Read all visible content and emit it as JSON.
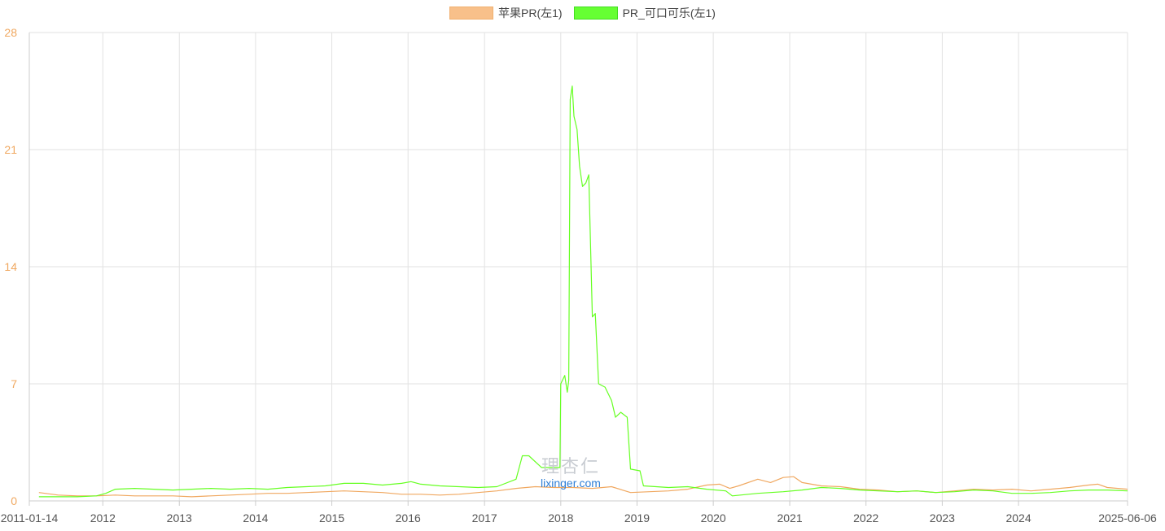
{
  "legend": [
    {
      "label": "苹果PR(左1)",
      "color": "#f8c08a",
      "border": "#f0b070"
    },
    {
      "label": "PR_可口可乐(左1)",
      "color": "#66ff33",
      "border": "#44dd22"
    }
  ],
  "watermark": {
    "cn": "理杏仁",
    "en": "lixinger.com"
  },
  "chart_data": {
    "type": "line",
    "x_start_label": "2011-01-14",
    "x_end_label": "2025-06-06",
    "xlim": [
      "2011-01-14",
      "2025-06-06"
    ],
    "x_ticks": [
      "2012",
      "2013",
      "2014",
      "2015",
      "2016",
      "2017",
      "2018",
      "2019",
      "2020",
      "2021",
      "2022",
      "2023",
      "2024"
    ],
    "ylim": [
      0,
      28
    ],
    "y_ticks": [
      "0",
      "7",
      "14",
      "21",
      "28"
    ],
    "grid": true,
    "legend_position": "top-center",
    "series": [
      {
        "name": "苹果PR(左1)",
        "color": "#f0a860",
        "points": [
          [
            "2011-03-01",
            0.5
          ],
          [
            "2011-06-01",
            0.35
          ],
          [
            "2011-09-01",
            0.3
          ],
          [
            "2011-12-01",
            0.3
          ],
          [
            "2012-03-01",
            0.35
          ],
          [
            "2012-06-01",
            0.3
          ],
          [
            "2012-09-01",
            0.3
          ],
          [
            "2012-12-01",
            0.3
          ],
          [
            "2013-03-01",
            0.25
          ],
          [
            "2013-06-01",
            0.3
          ],
          [
            "2013-09-01",
            0.35
          ],
          [
            "2013-12-01",
            0.4
          ],
          [
            "2014-03-01",
            0.45
          ],
          [
            "2014-06-01",
            0.45
          ],
          [
            "2014-09-01",
            0.5
          ],
          [
            "2014-12-01",
            0.55
          ],
          [
            "2015-03-01",
            0.6
          ],
          [
            "2015-06-01",
            0.55
          ],
          [
            "2015-09-01",
            0.5
          ],
          [
            "2015-12-01",
            0.4
          ],
          [
            "2016-03-01",
            0.4
          ],
          [
            "2016-06-01",
            0.35
          ],
          [
            "2016-09-01",
            0.4
          ],
          [
            "2016-12-01",
            0.5
          ],
          [
            "2017-03-01",
            0.6
          ],
          [
            "2017-06-01",
            0.75
          ],
          [
            "2017-09-01",
            0.85
          ],
          [
            "2017-12-01",
            0.8
          ],
          [
            "2018-03-01",
            0.8
          ],
          [
            "2018-06-01",
            0.75
          ],
          [
            "2018-09-01",
            0.85
          ],
          [
            "2018-12-01",
            0.5
          ],
          [
            "2019-03-01",
            0.55
          ],
          [
            "2019-06-01",
            0.6
          ],
          [
            "2019-09-01",
            0.7
          ],
          [
            "2019-12-01",
            0.95
          ],
          [
            "2020-02-01",
            1.0
          ],
          [
            "2020-03-20",
            0.75
          ],
          [
            "2020-05-01",
            0.9
          ],
          [
            "2020-08-01",
            1.3
          ],
          [
            "2020-10-01",
            1.1
          ],
          [
            "2020-12-01",
            1.4
          ],
          [
            "2021-01-20",
            1.45
          ],
          [
            "2021-03-01",
            1.1
          ],
          [
            "2021-06-01",
            0.9
          ],
          [
            "2021-09-01",
            0.85
          ],
          [
            "2021-12-01",
            0.7
          ],
          [
            "2022-03-01",
            0.65
          ],
          [
            "2022-06-01",
            0.55
          ],
          [
            "2022-09-01",
            0.6
          ],
          [
            "2022-12-01",
            0.5
          ],
          [
            "2023-03-01",
            0.6
          ],
          [
            "2023-06-01",
            0.7
          ],
          [
            "2023-09-01",
            0.65
          ],
          [
            "2023-12-01",
            0.7
          ],
          [
            "2024-03-01",
            0.6
          ],
          [
            "2024-06-01",
            0.7
          ],
          [
            "2024-09-01",
            0.8
          ],
          [
            "2024-12-01",
            0.95
          ],
          [
            "2025-01-15",
            1.0
          ],
          [
            "2025-03-01",
            0.8
          ],
          [
            "2025-06-06",
            0.7
          ]
        ]
      },
      {
        "name": "PR_可口可乐(左1)",
        "color": "#66ff22",
        "points": [
          [
            "2011-03-01",
            0.25
          ],
          [
            "2011-06-01",
            0.25
          ],
          [
            "2011-09-01",
            0.25
          ],
          [
            "2011-12-01",
            0.3
          ],
          [
            "2012-01-15",
            0.45
          ],
          [
            "2012-03-01",
            0.7
          ],
          [
            "2012-06-01",
            0.75
          ],
          [
            "2012-09-01",
            0.7
          ],
          [
            "2012-12-01",
            0.65
          ],
          [
            "2013-03-01",
            0.7
          ],
          [
            "2013-06-01",
            0.75
          ],
          [
            "2013-09-01",
            0.7
          ],
          [
            "2013-12-01",
            0.75
          ],
          [
            "2014-03-01",
            0.7
          ],
          [
            "2014-06-01",
            0.8
          ],
          [
            "2014-09-01",
            0.85
          ],
          [
            "2014-12-01",
            0.9
          ],
          [
            "2015-03-01",
            1.05
          ],
          [
            "2015-06-01",
            1.05
          ],
          [
            "2015-09-01",
            0.95
          ],
          [
            "2015-12-01",
            1.05
          ],
          [
            "2016-01-15",
            1.15
          ],
          [
            "2016-03-01",
            1.0
          ],
          [
            "2016-06-01",
            0.9
          ],
          [
            "2016-09-01",
            0.85
          ],
          [
            "2016-12-01",
            0.8
          ],
          [
            "2017-03-01",
            0.85
          ],
          [
            "2017-06-01",
            1.3
          ],
          [
            "2017-07-01",
            2.7
          ],
          [
            "2017-08-01",
            2.7
          ],
          [
            "2017-10-01",
            2.0
          ],
          [
            "2017-12-28",
            2.0
          ],
          [
            "2018-01-01",
            7.0
          ],
          [
            "2018-01-20",
            7.5
          ],
          [
            "2018-02-01",
            6.5
          ],
          [
            "2018-02-08",
            7.2
          ],
          [
            "2018-02-15",
            24.0
          ],
          [
            "2018-02-25",
            24.8
          ],
          [
            "2018-03-05",
            23.0
          ],
          [
            "2018-03-20",
            22.2
          ],
          [
            "2018-04-01",
            20.0
          ],
          [
            "2018-04-15",
            18.8
          ],
          [
            "2018-05-01",
            19.0
          ],
          [
            "2018-05-15",
            19.5
          ],
          [
            "2018-06-01",
            11.0
          ],
          [
            "2018-06-15",
            11.2
          ],
          [
            "2018-07-01",
            7.0
          ],
          [
            "2018-08-01",
            6.8
          ],
          [
            "2018-09-01",
            6.0
          ],
          [
            "2018-09-20",
            5.0
          ],
          [
            "2018-10-15",
            5.3
          ],
          [
            "2018-11-15",
            5.0
          ],
          [
            "2018-12-01",
            1.9
          ],
          [
            "2019-01-15",
            1.8
          ],
          [
            "2019-02-01",
            0.9
          ],
          [
            "2019-06-01",
            0.8
          ],
          [
            "2019-09-01",
            0.85
          ],
          [
            "2019-12-01",
            0.7
          ],
          [
            "2020-03-01",
            0.6
          ],
          [
            "2020-04-01",
            0.3
          ],
          [
            "2020-08-01",
            0.45
          ],
          [
            "2020-12-01",
            0.55
          ],
          [
            "2021-03-01",
            0.65
          ],
          [
            "2021-06-01",
            0.8
          ],
          [
            "2021-09-01",
            0.75
          ],
          [
            "2021-12-01",
            0.65
          ],
          [
            "2022-03-01",
            0.6
          ],
          [
            "2022-06-01",
            0.55
          ],
          [
            "2022-09-01",
            0.6
          ],
          [
            "2022-12-01",
            0.5
          ],
          [
            "2023-03-01",
            0.55
          ],
          [
            "2023-06-01",
            0.65
          ],
          [
            "2023-09-01",
            0.6
          ],
          [
            "2023-12-01",
            0.45
          ],
          [
            "2024-03-01",
            0.45
          ],
          [
            "2024-06-01",
            0.5
          ],
          [
            "2024-09-01",
            0.6
          ],
          [
            "2024-12-01",
            0.65
          ],
          [
            "2025-03-01",
            0.65
          ],
          [
            "2025-06-06",
            0.6
          ]
        ]
      }
    ]
  }
}
